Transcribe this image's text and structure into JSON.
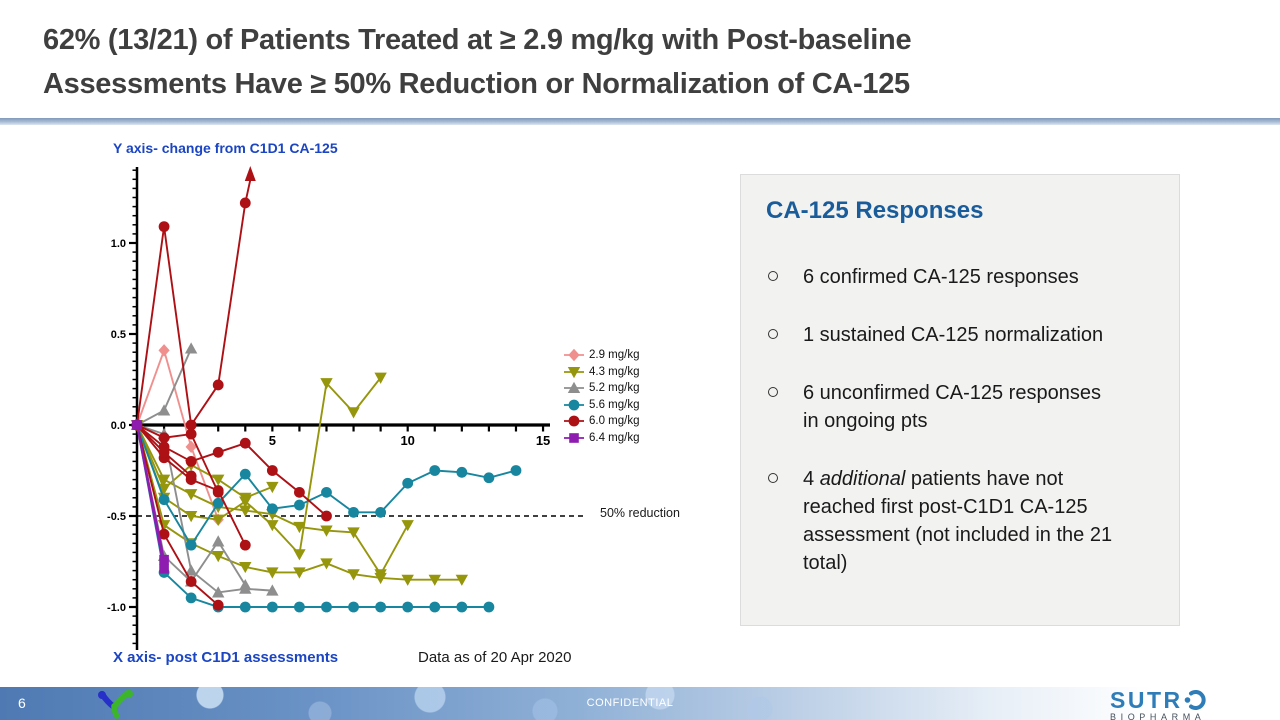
{
  "slide": {
    "title_line1": "62% (13/21) of Patients Treated at ≥ 2.9 mg/kg with Post-baseline",
    "title_line2": "Assessments Have ≥ 50% Reduction or Normalization of CA-125"
  },
  "chart": {
    "y_axis_label": "Y axis- change from C1D1 CA-125",
    "x_axis_label": "X axis- post C1D1 assessments",
    "data_as_of": "Data as of 20 Apr 2020",
    "reduction_label": "50% reduction"
  },
  "chart_data": {
    "type": "line",
    "title": "",
    "xlabel": "X axis- post C1D1 assessments",
    "ylabel": "Y axis- change from C1D1 CA-125",
    "xlim": [
      0,
      15
    ],
    "ylim": [
      -1.25,
      1.45
    ],
    "grid": false,
    "legend_position": "right",
    "x_tick_labels": [
      "5",
      "10",
      "15"
    ],
    "y_tick_labels": [
      "1.0",
      "0.5",
      "0.0",
      "-0.5",
      "-1.0"
    ],
    "reference_line": {
      "y": -0.5,
      "style": "dashed",
      "label": "50% reduction"
    },
    "legend": [
      {
        "label": "2.9 mg/kg",
        "color": "#f0908e",
        "marker": "diamond"
      },
      {
        "label": "4.3 mg/kg",
        "color": "#96960c",
        "marker": "tri-down"
      },
      {
        "label": "5.2 mg/kg",
        "color": "#8e8e8e",
        "marker": "tri-up"
      },
      {
        "label": "5.6 mg/kg",
        "color": "#17869e",
        "marker": "circle"
      },
      {
        "label": "6.0 mg/kg",
        "color": "#ad1015",
        "marker": "circle"
      },
      {
        "label": "6.4 mg/kg",
        "color": "#8e1cb0",
        "marker": "square"
      }
    ],
    "series": [
      {
        "dose": "2.9 mg/kg",
        "color": "#f0908e",
        "marker": "diamond",
        "points": [
          [
            0,
            0
          ],
          [
            1,
            0.41
          ],
          [
            2,
            -0.12
          ],
          [
            3,
            -0.52
          ]
        ]
      },
      {
        "dose": "4.3 mg/kg",
        "color": "#96960c",
        "marker": "tri-down",
        "points": [
          [
            0,
            0
          ],
          [
            1,
            -0.4
          ],
          [
            2,
            -0.5
          ],
          [
            3,
            -0.52
          ],
          [
            4,
            -0.42
          ],
          [
            5,
            -0.55
          ],
          [
            6,
            -0.71
          ],
          [
            7,
            0.23
          ],
          [
            8,
            0.07
          ],
          [
            9,
            0.26
          ]
        ]
      },
      {
        "dose": "4.3 mg/kg",
        "color": "#96960c",
        "marker": "tri-down",
        "points": [
          [
            0,
            0
          ],
          [
            1,
            -0.3
          ],
          [
            2,
            -0.38
          ],
          [
            3,
            -0.45
          ],
          [
            4,
            -0.47
          ],
          [
            5,
            -0.49
          ],
          [
            6,
            -0.56
          ],
          [
            7,
            -0.58
          ],
          [
            8,
            -0.59
          ],
          [
            9,
            -0.82
          ],
          [
            10,
            -0.55
          ]
        ]
      },
      {
        "dose": "4.3 mg/kg",
        "color": "#96960c",
        "marker": "tri-down",
        "points": [
          [
            0,
            0
          ],
          [
            1,
            -0.55
          ],
          [
            2,
            -0.65
          ],
          [
            3,
            -0.72
          ],
          [
            4,
            -0.78
          ],
          [
            5,
            -0.81
          ],
          [
            6,
            -0.81
          ],
          [
            7,
            -0.76
          ],
          [
            8,
            -0.82
          ],
          [
            9,
            -0.84
          ],
          [
            10,
            -0.85
          ],
          [
            11,
            -0.85
          ],
          [
            12,
            -0.85
          ]
        ]
      },
      {
        "dose": "4.3 mg/kg",
        "color": "#96960c",
        "marker": "tri-down",
        "points": [
          [
            0,
            0
          ],
          [
            1,
            -0.35
          ],
          [
            2,
            -0.22
          ],
          [
            3,
            -0.3
          ],
          [
            4,
            -0.4
          ],
          [
            5,
            -0.34
          ]
        ]
      },
      {
        "dose": "5.2 mg/kg",
        "color": "#8e8e8e",
        "marker": "tri-up",
        "points": [
          [
            0,
            0
          ],
          [
            1,
            0.08
          ],
          [
            2,
            0.42
          ]
        ]
      },
      {
        "dose": "5.2 mg/kg",
        "color": "#8e8e8e",
        "marker": "tri-up",
        "points": [
          [
            0,
            0
          ],
          [
            1,
            -0.72
          ],
          [
            2,
            -0.86
          ],
          [
            3,
            -0.64
          ],
          [
            4,
            -0.88
          ]
        ]
      },
      {
        "dose": "5.2 mg/kg",
        "color": "#8e8e8e",
        "marker": "tri-up",
        "points": [
          [
            0,
            0
          ],
          [
            1,
            -0.05
          ],
          [
            2,
            -0.8
          ],
          [
            3,
            -0.92
          ],
          [
            4,
            -0.9
          ],
          [
            5,
            -0.91
          ]
        ]
      },
      {
        "dose": "5.6 mg/kg",
        "color": "#17869e",
        "marker": "circle",
        "points": [
          [
            0,
            0
          ],
          [
            1,
            -0.81
          ],
          [
            2,
            -0.95
          ],
          [
            3,
            -1.0
          ],
          [
            4,
            -1.0
          ],
          [
            5,
            -1.0
          ],
          [
            6,
            -1.0
          ],
          [
            7,
            -1.0
          ],
          [
            8,
            -1.0
          ],
          [
            9,
            -1.0
          ],
          [
            10,
            -1.0
          ],
          [
            11,
            -1.0
          ],
          [
            12,
            -1.0
          ],
          [
            13,
            -1.0
          ]
        ]
      },
      {
        "dose": "5.6 mg/kg",
        "color": "#17869e",
        "marker": "circle",
        "points": [
          [
            0,
            0
          ],
          [
            1,
            -0.41
          ],
          [
            2,
            -0.66
          ],
          [
            3,
            -0.43
          ],
          [
            4,
            -0.27
          ],
          [
            5,
            -0.46
          ],
          [
            6,
            -0.44
          ],
          [
            7,
            -0.37
          ],
          [
            8,
            -0.48
          ],
          [
            9,
            -0.48
          ],
          [
            10,
            -0.32
          ],
          [
            11,
            -0.25
          ],
          [
            12,
            -0.26
          ],
          [
            13,
            -0.29
          ],
          [
            14,
            -0.25
          ]
        ]
      },
      {
        "dose": "6.0 mg/kg",
        "color": "#ad1015",
        "marker": "circle",
        "arrow_up": true,
        "points": [
          [
            0,
            0
          ],
          [
            1,
            1.09
          ],
          [
            2,
            0
          ],
          [
            3,
            0.22
          ],
          [
            4,
            1.22
          ]
        ]
      },
      {
        "dose": "6.0 mg/kg",
        "color": "#ad1015",
        "marker": "circle",
        "points": [
          [
            0,
            0
          ],
          [
            1,
            -0.6
          ],
          [
            2,
            -0.86
          ],
          [
            3,
            -0.99
          ]
        ]
      },
      {
        "dose": "6.0 mg/kg",
        "color": "#ad1015",
        "marker": "circle",
        "points": [
          [
            0,
            0
          ],
          [
            1,
            -0.12
          ],
          [
            2,
            -0.2
          ],
          [
            3,
            -0.15
          ],
          [
            4,
            -0.1
          ],
          [
            5,
            -0.25
          ],
          [
            6,
            -0.37
          ],
          [
            7,
            -0.5
          ]
        ]
      },
      {
        "dose": "6.0 mg/kg",
        "color": "#ad1015",
        "marker": "circle",
        "points": [
          [
            0,
            0
          ],
          [
            1,
            -0.07
          ],
          [
            2,
            -0.05
          ],
          [
            3,
            -0.37
          ]
        ]
      },
      {
        "dose": "6.0 mg/kg",
        "color": "#ad1015",
        "marker": "circle",
        "points": [
          [
            0,
            0
          ],
          [
            1,
            -0.18
          ],
          [
            2,
            -0.3
          ],
          [
            3,
            -0.36
          ],
          [
            4,
            -0.66
          ]
        ]
      },
      {
        "dose": "6.0 mg/kg",
        "color": "#ad1015",
        "marker": "circle",
        "points": [
          [
            0,
            0
          ],
          [
            1,
            -0.15
          ],
          [
            2,
            -0.28
          ]
        ]
      },
      {
        "dose": "6.4 mg/kg",
        "color": "#8e1cb0",
        "marker": "square",
        "points": [
          [
            0,
            0
          ],
          [
            1,
            -0.74
          ]
        ]
      },
      {
        "dose": "6.4 mg/kg",
        "color": "#8e1cb0",
        "marker": "square",
        "points": [
          [
            0,
            0
          ],
          [
            1,
            -0.79
          ]
        ]
      }
    ]
  },
  "panel": {
    "heading": "CA-125 Responses",
    "bullets": [
      {
        "pre": "6 confirmed CA-125 responses",
        "italic": "",
        "post": ""
      },
      {
        "pre": "1 sustained CA-125 normalization",
        "italic": "",
        "post": ""
      },
      {
        "pre": "6 unconfirmed CA-125 responses\nin ongoing pts",
        "italic": "",
        "post": ""
      },
      {
        "pre": "4 ",
        "italic": "additional",
        "post": " patients have not\nreached first post-C1D1 CA-125\nassessment (not included in the 21\ntotal)"
      }
    ]
  },
  "footer": {
    "page_number": "6",
    "confidential": "CONFIDENTIAL",
    "logo_top": "SUTR",
    "logo_bottom": "BIOPHARMA"
  }
}
